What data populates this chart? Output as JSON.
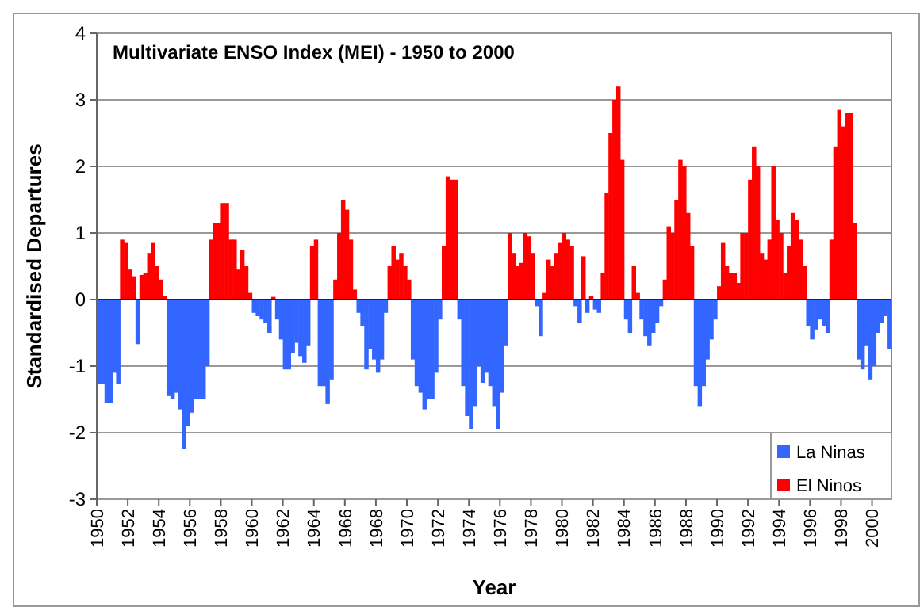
{
  "chart_data": {
    "type": "bar",
    "title": "Multivariate ENSO Index (MEI) - 1950 to 2000",
    "xlabel": "Year",
    "ylabel": "Standardised Departures",
    "xlim": [
      1950,
      2001.25
    ],
    "xticks": [
      1950,
      1952,
      1954,
      1956,
      1958,
      1960,
      1962,
      1964,
      1966,
      1968,
      1970,
      1972,
      1974,
      1976,
      1978,
      1980,
      1982,
      1984,
      1986,
      1988,
      1990,
      1992,
      1994,
      1996,
      1998,
      2000
    ],
    "ylim": [
      -3,
      4
    ],
    "yticks": [
      -3,
      -2,
      -1,
      0,
      1,
      2,
      3,
      4
    ],
    "grid": "y",
    "legend": "bottom right",
    "series": [
      {
        "name": "La Ninas",
        "color": "#3366ff",
        "x": [
          1950,
          1950.25,
          1950.5,
          1950.75,
          1951,
          1951.25,
          1952.5,
          1954.5,
          1954.75,
          1955,
          1955.25,
          1955.5,
          1955.75,
          1956,
          1956.25,
          1956.5,
          1956.75,
          1957,
          1960,
          1960.25,
          1960.5,
          1960.75,
          1961,
          1961.5,
          1961.75,
          1962,
          1962.25,
          1962.5,
          1962.75,
          1963,
          1963.25,
          1963.5,
          1964.25,
          1964.5,
          1964.75,
          1965,
          1966.75,
          1967,
          1967.25,
          1967.5,
          1967.75,
          1968,
          1968.25,
          1968.5,
          1970.25,
          1970.5,
          1970.75,
          1971,
          1971.25,
          1971.5,
          1971.75,
          1972,
          1973.25,
          1973.5,
          1973.75,
          1974,
          1974.25,
          1974.5,
          1974.75,
          1975,
          1975.25,
          1975.5,
          1975.75,
          1976,
          1976.25,
          1978.25,
          1978.5,
          1980.75,
          1981,
          1981.5,
          1982,
          1982.25,
          1984,
          1984.25,
          1985,
          1985.25,
          1985.5,
          1985.75,
          1986,
          1986.25,
          1988.5,
          1988.75,
          1989,
          1989.25,
          1989.5,
          1989.75,
          1995.75,
          1996,
          1996.25,
          1996.5,
          1996.75,
          1997,
          1999,
          1999.25,
          1999.5,
          1999.75,
          2000,
          2000.25,
          2000.5,
          2000.75,
          2001
        ],
        "values": [
          -1.27,
          -1.27,
          -1.55,
          -1.55,
          -1.1,
          -1.27,
          -0.67,
          -1.45,
          -1.5,
          -1.4,
          -1.65,
          -2.25,
          -1.9,
          -1.7,
          -1.5,
          -1.5,
          -1.5,
          -1.0,
          -0.2,
          -0.25,
          -0.3,
          -0.35,
          -0.5,
          -0.3,
          -0.6,
          -1.05,
          -1.05,
          -0.8,
          -0.65,
          -0.85,
          -0.95,
          -0.7,
          -1.3,
          -1.3,
          -1.57,
          -1.2,
          -0.2,
          -0.4,
          -1.05,
          -0.75,
          -0.9,
          -1.1,
          -0.9,
          -0.2,
          -0.9,
          -1.3,
          -1.4,
          -1.65,
          -1.5,
          -1.5,
          -1.1,
          -0.3,
          -0.3,
          -1.3,
          -1.75,
          -1.95,
          -1.6,
          -1.0,
          -1.25,
          -1.1,
          -1.3,
          -1.6,
          -1.95,
          -1.4,
          -0.7,
          -0.1,
          -0.55,
          -0.1,
          -0.35,
          -0.2,
          -0.15,
          -0.2,
          -0.3,
          -0.5,
          -0.3,
          -0.55,
          -0.7,
          -0.5,
          -0.35,
          -0.1,
          -1.3,
          -1.6,
          -1.3,
          -0.9,
          -0.6,
          -0.3,
          -0.4,
          -0.6,
          -0.45,
          -0.3,
          -0.4,
          -0.5,
          -0.9,
          -1.05,
          -0.7,
          -1.2,
          -1.0,
          -0.5,
          -0.35,
          -0.25,
          -0.75
        ]
      },
      {
        "name": "El Ninos",
        "color": "#ff0000",
        "x": [
          1951.5,
          1951.75,
          1952,
          1952.25,
          1952.75,
          1953,
          1953.25,
          1953.5,
          1953.75,
          1954,
          1954.25,
          1957.25,
          1957.5,
          1957.75,
          1958,
          1958.25,
          1958.5,
          1958.75,
          1959,
          1959.25,
          1959.5,
          1959.75,
          1961.25,
          1963.75,
          1964,
          1965.25,
          1965.5,
          1965.75,
          1966,
          1966.25,
          1966.5,
          1968.75,
          1969,
          1969.25,
          1969.5,
          1969.75,
          1970,
          1972.25,
          1972.5,
          1972.75,
          1973,
          1976.5,
          1976.75,
          1977,
          1977.25,
          1977.5,
          1977.75,
          1978,
          1978.75,
          1979,
          1979.25,
          1979.5,
          1979.75,
          1980,
          1980.25,
          1980.5,
          1981.25,
          1981.75,
          1982.5,
          1982.75,
          1983,
          1983.25,
          1983.5,
          1983.75,
          1984.5,
          1984.75,
          1986.5,
          1986.75,
          1987,
          1987.25,
          1987.5,
          1987.75,
          1988,
          1988.25,
          1990,
          1990.25,
          1990.5,
          1990.75,
          1991,
          1991.25,
          1991.5,
          1991.75,
          1992,
          1992.25,
          1992.5,
          1992.75,
          1993,
          1993.25,
          1993.5,
          1993.75,
          1994,
          1994.25,
          1994.5,
          1994.75,
          1995,
          1995.25,
          1995.5,
          1997.25,
          1997.5,
          1997.75,
          1998,
          1998.25,
          1998.5,
          1998.75
        ],
        "values": [
          0.9,
          0.85,
          0.45,
          0.35,
          0.37,
          0.4,
          0.7,
          0.85,
          0.5,
          0.3,
          0.05,
          0.9,
          1.15,
          1.15,
          1.45,
          1.45,
          0.9,
          0.9,
          0.45,
          0.75,
          0.5,
          0.1,
          0.04,
          0.8,
          0.9,
          0.3,
          1.0,
          1.5,
          1.35,
          0.9,
          0.15,
          0.5,
          0.8,
          0.6,
          0.7,
          0.5,
          0.3,
          0.8,
          1.85,
          1.8,
          1.8,
          1.0,
          0.7,
          0.5,
          0.55,
          1.0,
          0.95,
          0.7,
          0.1,
          0.6,
          0.5,
          0.7,
          0.85,
          1.0,
          0.9,
          0.8,
          0.65,
          0.05,
          0.4,
          1.6,
          2.5,
          3.0,
          3.2,
          2.1,
          0.5,
          0.1,
          0.3,
          1.1,
          1.0,
          1.5,
          2.1,
          2.0,
          1.3,
          0.8,
          0.2,
          0.85,
          0.5,
          0.4,
          0.4,
          0.25,
          1.0,
          1.0,
          1.8,
          2.3,
          2.0,
          0.7,
          0.6,
          0.9,
          2.0,
          1.2,
          1.0,
          0.4,
          0.8,
          1.3,
          1.2,
          0.9,
          0.5,
          0.9,
          2.3,
          2.85,
          2.6,
          2.8,
          2.8,
          1.15
        ]
      }
    ]
  }
}
